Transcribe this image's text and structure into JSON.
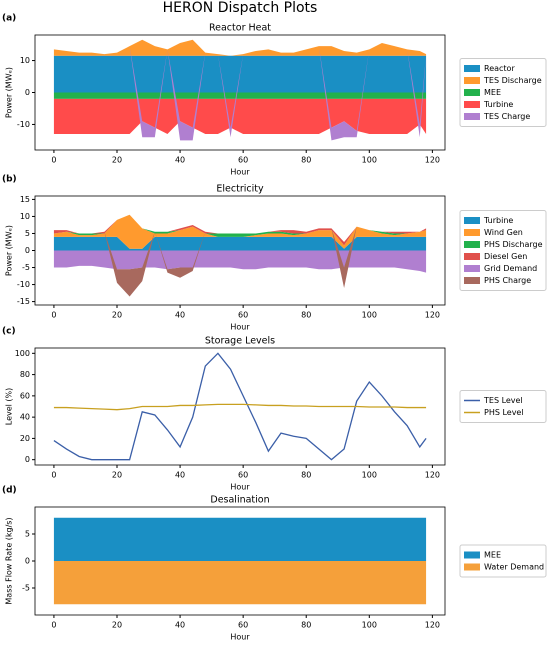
{
  "title": "HERON Dispatch Plots",
  "chart_data": [
    {
      "type": "area",
      "panel_label": "(a)",
      "title": "Reactor Heat",
      "xlabel": "Hour",
      "ylabel": "Power (MWₑ)",
      "x": [
        0,
        4,
        8,
        12,
        16,
        20,
        24,
        28,
        32,
        36,
        40,
        44,
        48,
        52,
        56,
        60,
        64,
        68,
        72,
        76,
        80,
        84,
        88,
        92,
        96,
        100,
        104,
        108,
        112,
        116,
        118
      ],
      "xlim": [
        -6,
        124
      ],
      "xticks": [
        0,
        20,
        40,
        60,
        80,
        100,
        120
      ],
      "ylim": [
        -18,
        18
      ],
      "yticks": [
        -10,
        0,
        10
      ],
      "series": [
        {
          "name": "Reactor",
          "color": "#1a8fc4",
          "values": [
            11.5,
            11.5,
            11.5,
            11.5,
            11.5,
            11.5,
            11.5,
            11.5,
            11.5,
            11.5,
            11.5,
            11.5,
            11.5,
            11.5,
            11.5,
            11.5,
            11.5,
            11.5,
            11.5,
            11.5,
            11.5,
            11.5,
            11.5,
            11.5,
            11.5,
            11.5,
            11.5,
            11.5,
            11.5,
            11.5,
            11.5
          ]
        },
        {
          "name": "TES Discharge",
          "color": "#ff9a2e",
          "values": [
            2,
            1.5,
            1,
            1,
            0.5,
            1,
            3,
            5,
            3,
            2,
            4,
            5,
            1,
            0.5,
            0,
            0.5,
            1.5,
            2,
            1,
            1,
            2,
            3,
            3,
            1.5,
            1,
            2,
            4,
            3,
            2,
            1.5,
            0.5
          ]
        },
        {
          "name": "MEE",
          "color": "#22b14c",
          "values": [
            -2,
            -2,
            -2,
            -2,
            -2,
            -2,
            -2,
            -2,
            -2,
            -2,
            -2,
            -2,
            -2,
            -2,
            -2,
            -2,
            -2,
            -2,
            -2,
            -2,
            -2,
            -2,
            -2,
            -2,
            -2,
            -2,
            -2,
            -2,
            -2,
            -2,
            -2
          ]
        },
        {
          "name": "Turbine",
          "color": "#ff4b4b",
          "values": [
            -11,
            -11,
            -11,
            -11,
            -11,
            -11,
            -11,
            -7,
            -9,
            -11,
            -7,
            -9,
            -11,
            -11,
            -9,
            -11,
            -11,
            -11,
            -11,
            -11,
            -11,
            -11,
            -9,
            -7,
            -10,
            -11,
            -11,
            -11,
            -11,
            -8,
            -11
          ]
        },
        {
          "name": "TES Charge",
          "color": "#b07fd0",
          "values": [
            0,
            0,
            0,
            0,
            0,
            0,
            0,
            -5,
            -3,
            0,
            -6,
            -4,
            0,
            0,
            -3,
            0,
            0,
            0,
            0,
            0,
            0,
            0,
            -4,
            -5,
            -2,
            0,
            0,
            0,
            0,
            -4,
            0
          ]
        }
      ]
    },
    {
      "type": "area",
      "panel_label": "(b)",
      "title": "Electricity",
      "xlabel": "Hour",
      "ylabel": "Power (MWₑ)",
      "x": [
        0,
        4,
        8,
        12,
        16,
        20,
        24,
        28,
        32,
        36,
        40,
        44,
        48,
        52,
        56,
        60,
        64,
        68,
        72,
        76,
        80,
        84,
        88,
        92,
        96,
        100,
        104,
        108,
        112,
        116,
        118
      ],
      "xlim": [
        -6,
        124
      ],
      "xticks": [
        0,
        20,
        40,
        60,
        80,
        100,
        120
      ],
      "ylim": [
        -16,
        16
      ],
      "yticks": [
        -15,
        -10,
        -5,
        0,
        5,
        10,
        15
      ],
      "series": [
        {
          "name": "Turbine",
          "color": "#1a8fc4",
          "values": [
            4,
            4,
            4,
            4,
            4,
            4,
            0.5,
            0.5,
            4,
            4,
            4,
            4,
            4,
            4,
            4,
            4,
            4,
            4,
            4,
            4,
            4,
            4,
            4,
            0.5,
            4,
            4,
            4,
            4,
            4,
            4,
            4
          ]
        },
        {
          "name": "Wind Gen",
          "color": "#ff9a2e",
          "values": [
            1,
            1.5,
            0.5,
            0.5,
            1,
            5,
            10,
            6,
            1,
            1,
            2,
            3,
            1,
            0,
            0,
            0,
            0.5,
            1,
            1,
            0.5,
            1,
            2,
            2,
            1,
            3,
            2,
            1,
            0.5,
            1,
            1.5,
            2
          ]
        },
        {
          "name": "PHS Discharge",
          "color": "#22b14c",
          "values": [
            0,
            0,
            0.5,
            0.5,
            0,
            0,
            0,
            0,
            0.5,
            0.5,
            0,
            0,
            0,
            1,
            1,
            1,
            0.5,
            0.5,
            0.5,
            0.5,
            0,
            0,
            0,
            0,
            0,
            0,
            0.5,
            0.5,
            0,
            0,
            0
          ]
        },
        {
          "name": "Diesel Gen",
          "color": "#e0504b",
          "values": [
            1,
            0.5,
            0,
            0,
            0.5,
            0,
            0,
            0,
            0,
            0,
            0.5,
            0.5,
            0.5,
            0,
            0,
            0,
            0,
            0,
            0.5,
            1,
            0.5,
            0.5,
            0.5,
            1,
            0,
            0,
            0,
            0.5,
            0.5,
            0,
            0.5
          ]
        },
        {
          "name": "Grid Demand",
          "color": "#b07fd0",
          "values": [
            -5,
            -5,
            -4.5,
            -4.5,
            -5,
            -5.5,
            -5.5,
            -5,
            -5,
            -5.5,
            -5,
            -5,
            -5,
            -5,
            -5,
            -5.5,
            -5.5,
            -5,
            -5,
            -5,
            -5,
            -5.5,
            -5.5,
            -5,
            -5,
            -5,
            -5,
            -5,
            -5.5,
            -6,
            -6.5
          ]
        },
        {
          "name": "PHS Charge",
          "color": "#a8695e",
          "values": [
            0,
            0,
            0,
            0,
            0,
            -4,
            -8,
            -4,
            0,
            -1,
            -3,
            -1,
            0,
            0,
            0,
            0,
            0,
            0,
            0,
            0,
            0,
            0,
            0,
            -6,
            0,
            0,
            0,
            0,
            0,
            0,
            0
          ]
        }
      ]
    },
    {
      "type": "line",
      "panel_label": "(c)",
      "title": "Storage Levels",
      "xlabel": "Hour",
      "ylabel": "Level (%)",
      "x": [
        0,
        4,
        8,
        12,
        16,
        20,
        24,
        28,
        32,
        36,
        40,
        44,
        48,
        52,
        56,
        60,
        64,
        68,
        72,
        76,
        80,
        84,
        88,
        92,
        96,
        100,
        104,
        108,
        112,
        116,
        118
      ],
      "xlim": [
        -6,
        124
      ],
      "xticks": [
        0,
        20,
        40,
        60,
        80,
        100,
        120
      ],
      "ylim": [
        -5,
        105
      ],
      "yticks": [
        0,
        20,
        40,
        60,
        80,
        100
      ],
      "series": [
        {
          "name": "TES Level",
          "color": "#3b5fa8",
          "values": [
            18,
            10,
            3,
            0,
            0,
            0,
            0,
            45,
            42,
            28,
            12,
            40,
            88,
            100,
            85,
            60,
            35,
            8,
            25,
            22,
            20,
            10,
            0,
            10,
            55,
            73,
            60,
            45,
            32,
            12,
            20
          ]
        },
        {
          "name": "PHS Level",
          "color": "#c8a020",
          "values": [
            49,
            49,
            48.5,
            48,
            47.5,
            47,
            48,
            50,
            50,
            50,
            51,
            51,
            51.5,
            52,
            52,
            52,
            51.5,
            51,
            51,
            50.5,
            50.5,
            50,
            50,
            50,
            50,
            49.5,
            49.5,
            49.5,
            49,
            49,
            49
          ]
        }
      ]
    },
    {
      "type": "area",
      "panel_label": "(d)",
      "title": "Desalination",
      "xlabel": "Hour",
      "ylabel": "Mass Flow Rate (kg/s)",
      "x": [
        0,
        118
      ],
      "xlim": [
        -6,
        124
      ],
      "xticks": [
        0,
        20,
        40,
        60,
        80,
        100,
        120
      ],
      "ylim": [
        -10,
        10
      ],
      "yticks": [
        -5,
        0,
        5
      ],
      "series": [
        {
          "name": "MEE",
          "color": "#1a8fc4",
          "values": [
            8,
            8
          ]
        },
        {
          "name": "Water Demand",
          "color": "#f5a03a",
          "values": [
            -8,
            -8
          ]
        }
      ]
    }
  ]
}
